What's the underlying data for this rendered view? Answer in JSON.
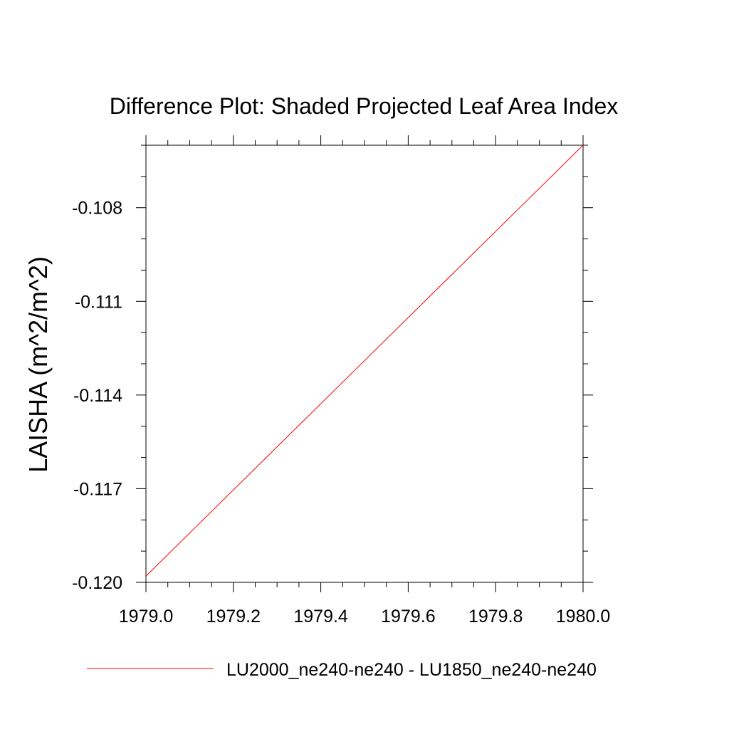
{
  "chart_data": {
    "type": "line",
    "title": "Difference Plot: Shaded Projected Leaf Area Index",
    "xlabel": "",
    "ylabel": "LAISHA  (m^2/m^2)",
    "xlim": [
      1979.0,
      1980.0
    ],
    "ylim": [
      -0.12,
      -0.106
    ],
    "x_ticks": [
      "1979.0",
      "1979.2",
      "1979.4",
      "1979.6",
      "1979.8",
      "1980.0"
    ],
    "y_ticks": [
      "-0.108",
      "-0.111",
      "-0.114",
      "-0.117",
      "-0.120"
    ],
    "grid": false,
    "legend_position": "bottom",
    "series": [
      {
        "name": "LU2000_ne240-ne240 - LU1850_ne240-ne240",
        "color": "#ff0000",
        "x": [
          1979.0,
          1980.0
        ],
        "y": [
          -0.1198,
          -0.106
        ]
      }
    ]
  }
}
